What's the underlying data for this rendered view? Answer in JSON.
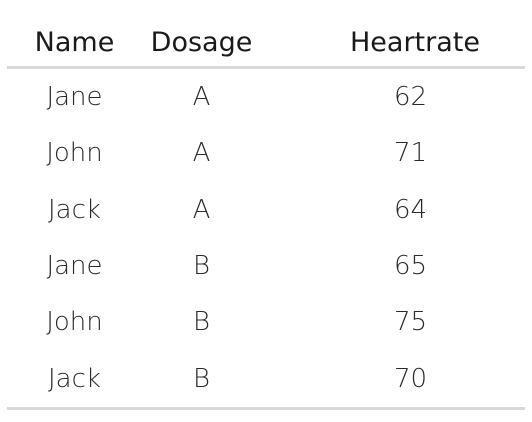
{
  "table": {
    "headers": [
      "Name",
      "Dosage",
      "Heartrate"
    ],
    "rows": [
      [
        "Jane",
        "A",
        "62"
      ],
      [
        "John",
        "A",
        "71"
      ],
      [
        "Jack",
        "A",
        "64"
      ],
      [
        "Jane",
        "B",
        "65"
      ],
      [
        "John",
        "B",
        "75"
      ],
      [
        "Jack",
        "B",
        "70"
      ]
    ]
  }
}
